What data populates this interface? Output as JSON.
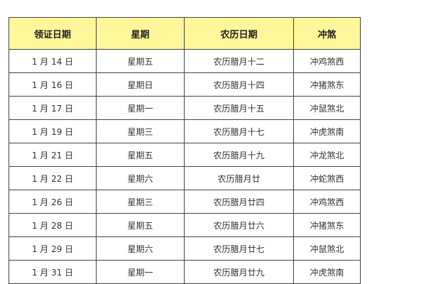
{
  "table": {
    "headers": [
      "领证日期",
      "星期",
      "农历日期",
      "冲煞"
    ],
    "header_color": "#fff79a",
    "rows": [
      [
        "1 月 14 日",
        "星期五",
        "农历腊月十二",
        "冲鸡煞西"
      ],
      [
        "1 月 16 日",
        "星期日",
        "农历腊月十四",
        "冲猪煞东"
      ],
      [
        "1 月 17 日",
        "星期一",
        "农历腊月十五",
        "冲鼠煞北"
      ],
      [
        "1 月 19 日",
        "星期三",
        "农历腊月十七",
        "冲虎煞南"
      ],
      [
        "1 月 21 日",
        "星期五",
        "农历腊月十九",
        "冲龙煞北"
      ],
      [
        "1 月 22 日",
        "星期六",
        "农历腊月廿",
        "冲蛇煞西"
      ],
      [
        "1 月 26 日",
        "星期三",
        "农历腊月廿四",
        "冲鸡煞西"
      ],
      [
        "1 月 28 日",
        "星期五",
        "农历腊月廿六",
        "冲猪煞东"
      ],
      [
        "1 月 29 日",
        "星期六",
        "农历腊月廿七",
        "冲鼠煞北"
      ],
      [
        "1 月 31 日",
        "星期一",
        "农历腊月廿九",
        "冲虎煞南"
      ]
    ]
  }
}
